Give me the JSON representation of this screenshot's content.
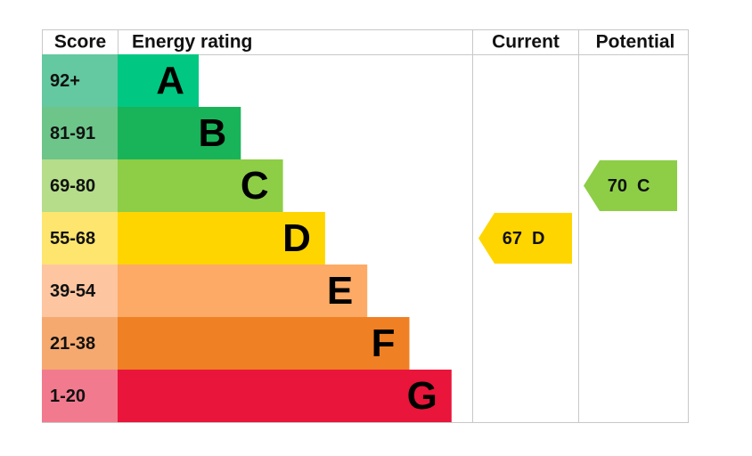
{
  "chart_data": {
    "type": "epc",
    "headers": [
      "Score",
      "Energy rating",
      "Current",
      "Potential"
    ],
    "bands": [
      {
        "score": "92+",
        "rating": "A",
        "color": "#00c781",
        "score_color": "#64c8a0"
      },
      {
        "score": "81-91",
        "rating": "B",
        "color": "#19b459",
        "score_color": "#6dc58a"
      },
      {
        "score": "69-80",
        "rating": "C",
        "color": "#8dce46",
        "score_color": "#b5dd8a"
      },
      {
        "score": "55-68",
        "rating": "D",
        "color": "#ffd500",
        "score_color": "#fde56e"
      },
      {
        "score": "39-54",
        "rating": "E",
        "color": "#fcaa65",
        "score_color": "#fdc5a0"
      },
      {
        "score": "21-38",
        "rating": "F",
        "color": "#ef8023",
        "score_color": "#f5a96f"
      },
      {
        "score": "1-20",
        "rating": "G",
        "color": "#e9153b",
        "score_color": "#f27a8e"
      }
    ],
    "current": {
      "value": 67,
      "rating": "D"
    },
    "potential": {
      "value": 70,
      "rating": "C"
    }
  }
}
